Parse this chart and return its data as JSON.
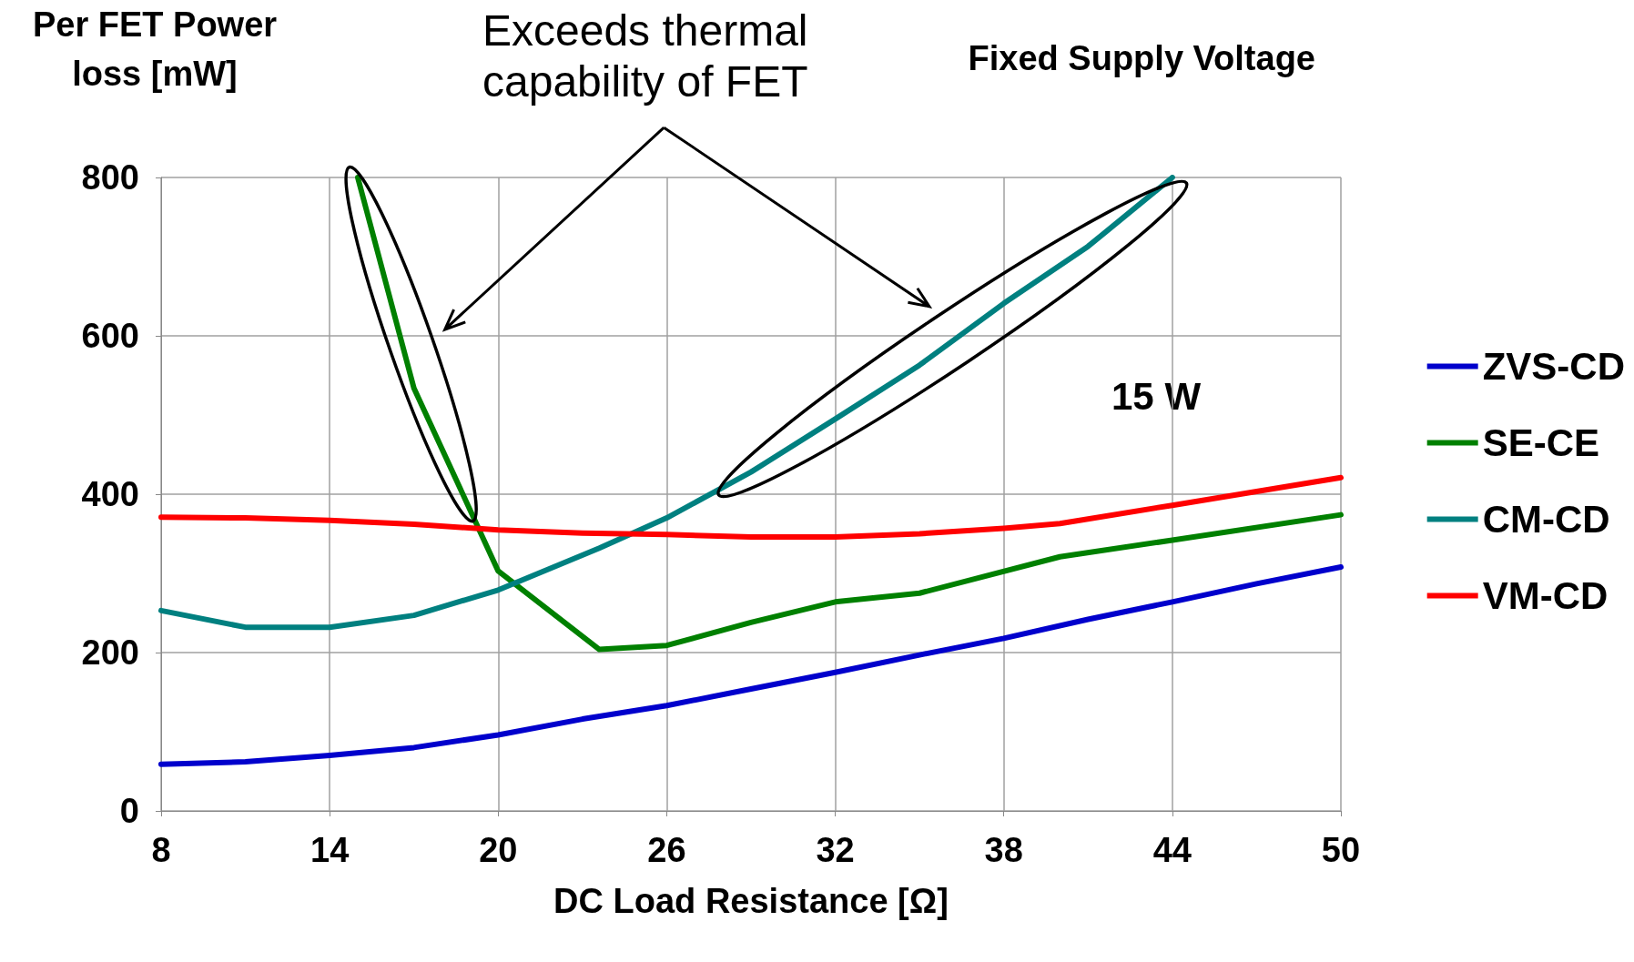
{
  "chart_data": {
    "type": "line",
    "title": "Fixed Supply Voltage",
    "ylabel": "Per FET Power\nloss [mW]",
    "xlabel": "DC Load Resistance [Ω]",
    "annotations": [
      "Exceeds thermal\ncapability of FET",
      "15 W"
    ],
    "xlim": [
      8,
      50
    ],
    "xticks": [
      8,
      14,
      20,
      26,
      32,
      38,
      44,
      50
    ],
    "ylim": [
      0,
      800
    ],
    "yticks": [
      0,
      200,
      400,
      600,
      800
    ],
    "grid": true,
    "legend": "right",
    "marker": "none",
    "line_style": "solid",
    "series": [
      {
        "name": "ZVS-CD",
        "color": "#0000cc",
        "x": [
          8,
          11,
          14,
          17,
          20,
          23,
          26,
          29,
          32,
          35,
          38,
          41,
          44,
          47,
          50
        ],
        "values": [
          59,
          62,
          70,
          80,
          96,
          116,
          133,
          154,
          175,
          197,
          218,
          242,
          264,
          287,
          308
        ]
      },
      {
        "name": "SE-CE",
        "color": "#008000",
        "x": [
          15,
          17,
          20,
          23.6,
          26,
          29,
          32,
          35,
          40,
          44,
          50
        ],
        "values": [
          800,
          534,
          303,
          204,
          209,
          238,
          264,
          275,
          321,
          342,
          374
        ]
      },
      {
        "name": "CM-CD",
        "color": "#008080",
        "x": [
          8,
          11,
          14,
          17,
          20,
          23.6,
          26,
          29,
          32,
          35,
          38,
          41,
          44
        ],
        "values": [
          253,
          232,
          232,
          247,
          279,
          332,
          370,
          428,
          495,
          563,
          641,
          713,
          800
        ]
      },
      {
        "name": "VM-CD",
        "color": "#ff0000",
        "x": [
          8,
          11,
          14,
          17,
          20,
          23,
          26,
          29,
          32,
          35,
          38,
          40,
          44,
          50
        ],
        "values": [
          371,
          370,
          367,
          362,
          355,
          351,
          349,
          346,
          346,
          350,
          357,
          363,
          386,
          421
        ]
      }
    ]
  }
}
